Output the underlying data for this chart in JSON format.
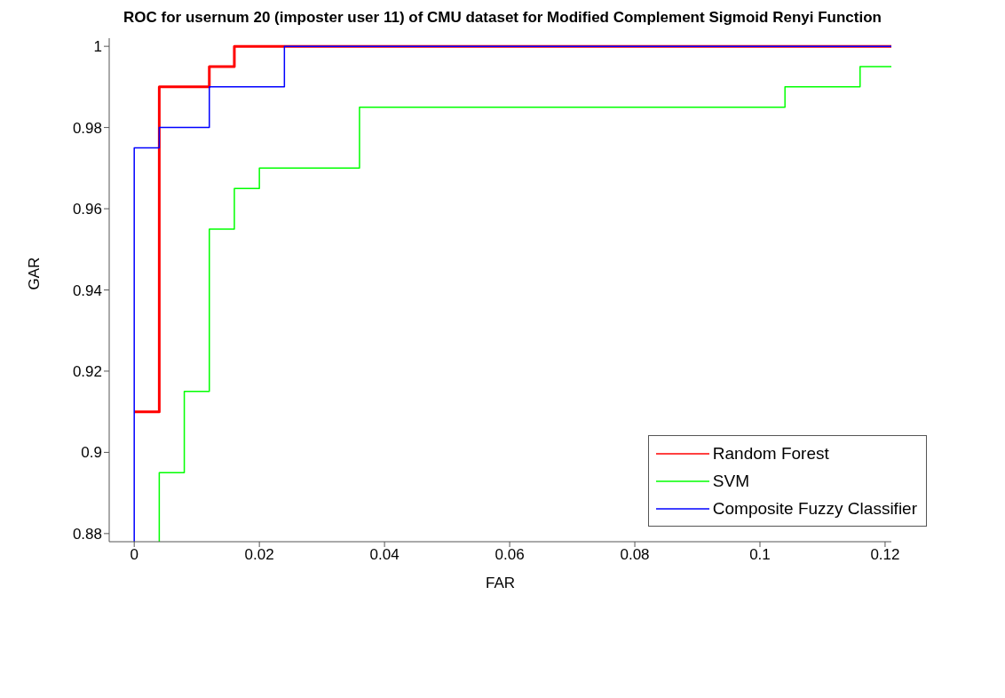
{
  "chart_data": {
    "type": "step",
    "title": "ROC for usernum 20 (imposter user 11) of CMU dataset for Modified Complement Sigmoid Renyi Function",
    "xlabel": "FAR",
    "ylabel": "GAR",
    "series": [
      {
        "name": "Random Forest",
        "color": "#ff0000",
        "x": [
          0,
          0.004,
          0.012,
          0.016,
          0.121
        ],
        "values": [
          0.91,
          0.99,
          0.995,
          1,
          1
        ]
      },
      {
        "name": "SVM",
        "color": "#00ff00",
        "x": [
          0.004,
          0.004,
          0.008,
          0.012,
          0.016,
          0.02,
          0.036,
          0.104,
          0.116,
          0.121
        ],
        "values": [
          0.878,
          0.895,
          0.915,
          0.955,
          0.965,
          0.97,
          0.985,
          0.99,
          0.995,
          0.995
        ]
      },
      {
        "name": "Composite Fuzzy Classifier",
        "color": "#0000ff",
        "x": [
          0,
          0,
          0.004,
          0.012,
          0.024,
          0.121
        ],
        "values": [
          0.878,
          0.975,
          0.98,
          0.99,
          1,
          1
        ]
      }
    ],
    "xlim": [
      -0.004,
      0.121
    ],
    "ylim": [
      0.878,
      1.002
    ],
    "xticks": [
      0,
      0.02,
      0.04,
      0.06,
      0.08,
      0.1,
      0.12
    ],
    "yticks": [
      0.88,
      0.9,
      0.92,
      0.94,
      0.96,
      0.98,
      1
    ],
    "grid": false,
    "legend": "bottom right",
    "marker": "none",
    "line_style": "solid"
  }
}
